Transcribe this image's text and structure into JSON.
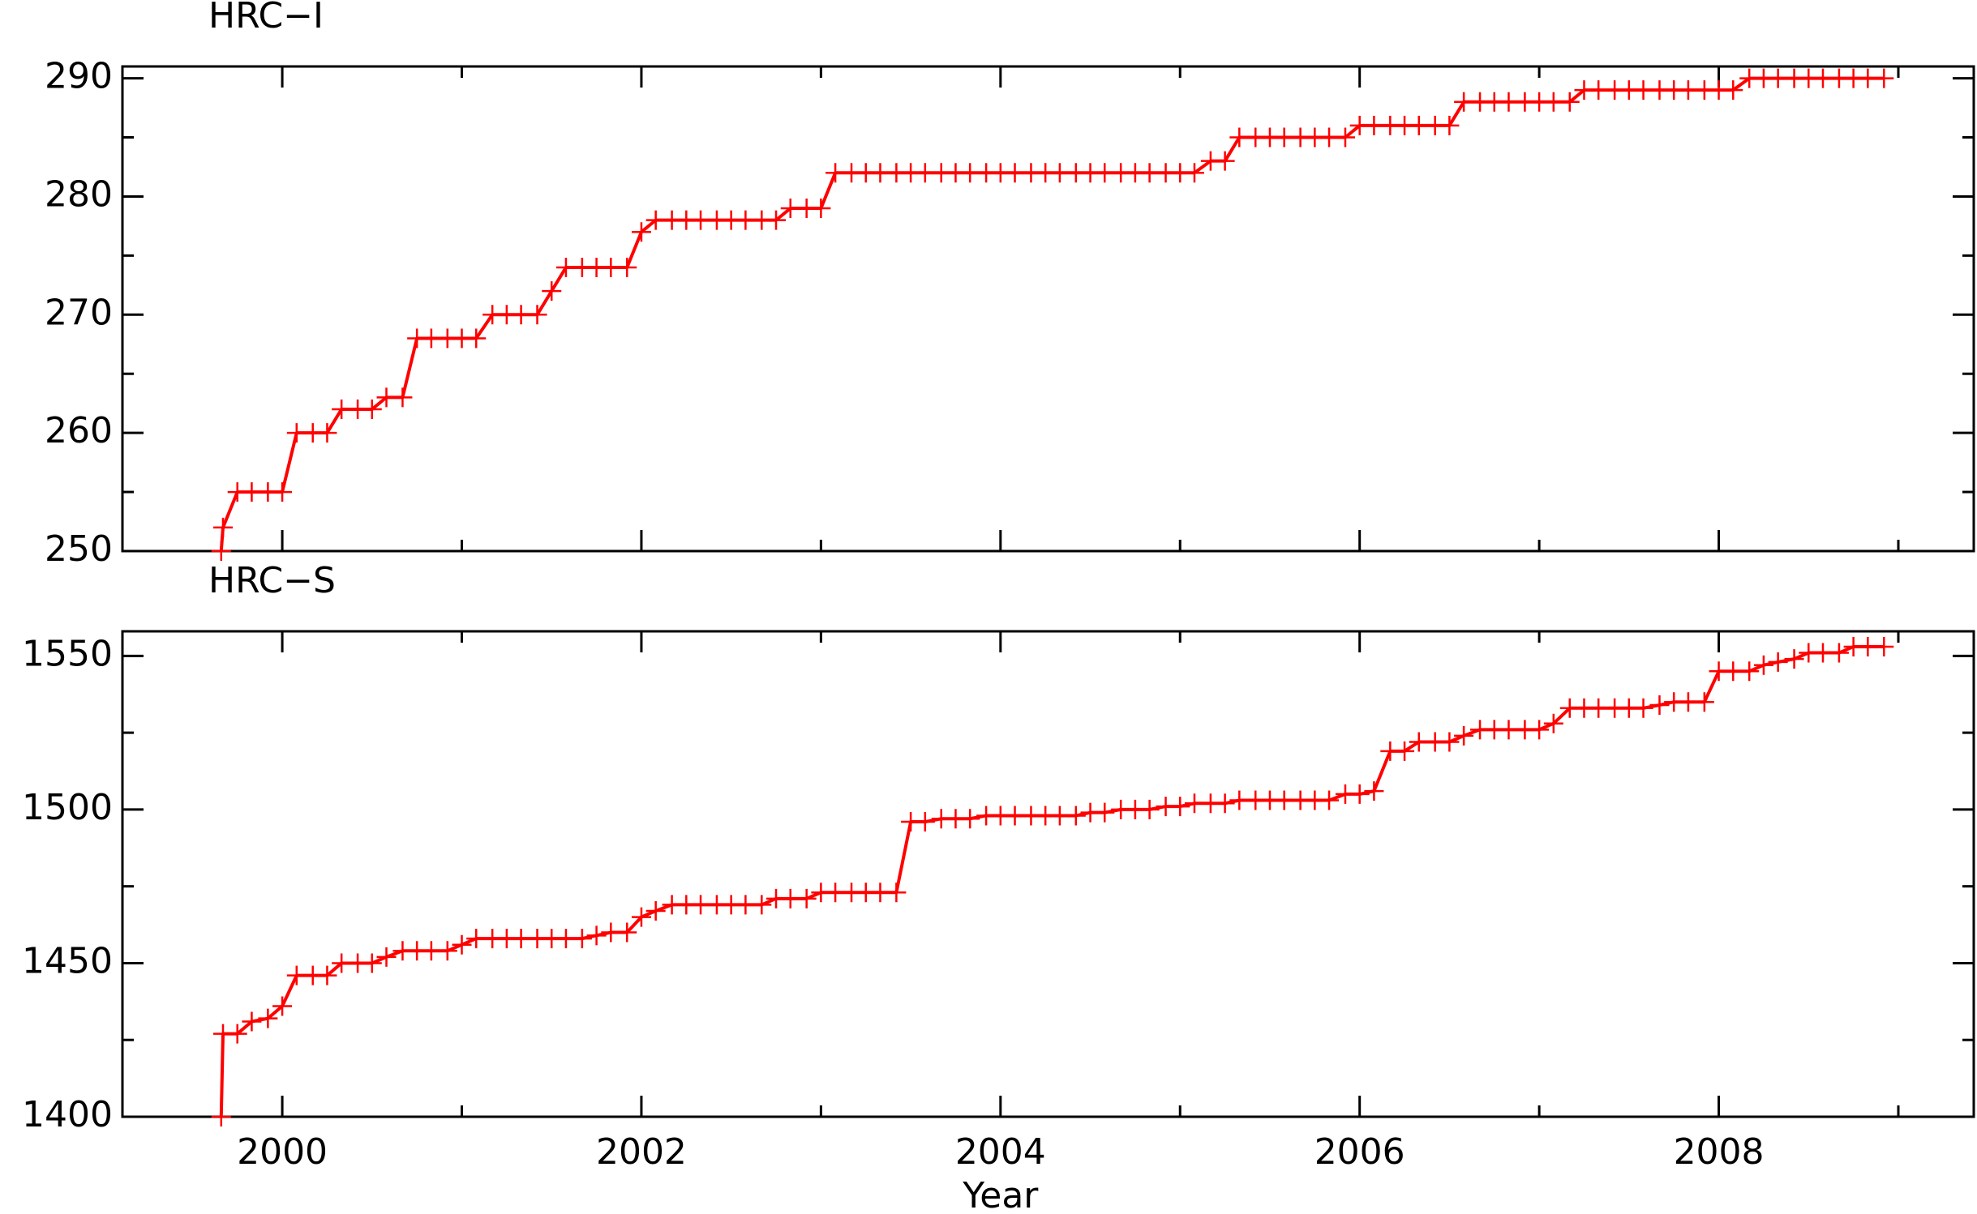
{
  "chart_data": [
    {
      "type": "line",
      "title": "HRC−I",
      "x": [
        1999.66,
        1999.67,
        1999.75,
        1999.83,
        1999.92,
        2000.0,
        2000.08,
        2000.17,
        2000.25,
        2000.33,
        2000.42,
        2000.5,
        2000.58,
        2000.67,
        2000.75,
        2000.83,
        2000.92,
        2001.0,
        2001.08,
        2001.17,
        2001.25,
        2001.33,
        2001.42,
        2001.5,
        2001.58,
        2001.67,
        2001.75,
        2001.83,
        2001.92,
        2002.0,
        2002.08,
        2002.17,
        2002.25,
        2002.33,
        2002.42,
        2002.5,
        2002.58,
        2002.67,
        2002.75,
        2002.83,
        2002.92,
        2003.0,
        2003.08,
        2003.17,
        2003.25,
        2003.33,
        2003.42,
        2003.5,
        2003.58,
        2003.67,
        2003.75,
        2003.83,
        2003.92,
        2004.0,
        2004.08,
        2004.17,
        2004.25,
        2004.33,
        2004.42,
        2004.5,
        2004.58,
        2004.67,
        2004.75,
        2004.83,
        2004.92,
        2005.0,
        2005.08,
        2005.17,
        2005.25,
        2005.33,
        2005.42,
        2005.5,
        2005.58,
        2005.67,
        2005.75,
        2005.83,
        2005.92,
        2006.0,
        2006.08,
        2006.17,
        2006.25,
        2006.33,
        2006.42,
        2006.5,
        2006.58,
        2006.67,
        2006.75,
        2006.83,
        2006.92,
        2007.0,
        2007.08,
        2007.17,
        2007.25,
        2007.33,
        2007.42,
        2007.5,
        2007.58,
        2007.67,
        2007.75,
        2007.83,
        2007.92,
        2008.0,
        2008.08,
        2008.17,
        2008.25,
        2008.33,
        2008.42,
        2008.5,
        2008.58,
        2008.67,
        2008.75,
        2008.83,
        2008.92
      ],
      "series": [
        {
          "color": "#ff0000",
          "values": [
            250,
            252,
            255,
            255,
            255,
            255,
            260,
            260,
            260,
            262,
            262,
            262,
            263,
            263,
            268,
            268,
            268,
            268,
            268,
            270,
            270,
            270,
            270,
            272,
            274,
            274,
            274,
            274,
            274,
            277,
            278,
            278,
            278,
            278,
            278,
            278,
            278,
            278,
            278,
            279,
            279,
            279,
            282,
            282,
            282,
            282,
            282,
            282,
            282,
            282,
            282,
            282,
            282,
            282,
            282,
            282,
            282,
            282,
            282,
            282,
            282,
            282,
            282,
            282,
            282,
            282,
            282,
            283,
            283,
            285,
            285,
            285,
            285,
            285,
            285,
            285,
            285,
            286,
            286,
            286,
            286,
            286,
            286,
            286,
            288,
            288,
            288,
            288,
            288,
            288,
            288,
            288,
            289,
            289,
            289,
            289,
            289,
            289,
            289,
            289,
            289,
            289,
            289,
            290,
            290,
            290,
            290,
            290,
            290,
            290,
            290,
            290,
            290
          ]
        }
      ],
      "xlim": [
        1999.11,
        2009.42
      ],
      "xticks": [
        2000,
        2002,
        2004,
        2006,
        2008
      ],
      "ylim": [
        250,
        291
      ],
      "yticks": [
        250,
        260,
        270,
        280,
        290
      ]
    },
    {
      "type": "line",
      "title": "HRC−S",
      "xlabel": "Year",
      "x": [
        1999.66,
        1999.67,
        1999.75,
        1999.83,
        1999.92,
        2000.0,
        2000.08,
        2000.17,
        2000.25,
        2000.33,
        2000.42,
        2000.5,
        2000.58,
        2000.67,
        2000.75,
        2000.83,
        2000.92,
        2001.0,
        2001.08,
        2001.17,
        2001.25,
        2001.33,
        2001.42,
        2001.5,
        2001.58,
        2001.67,
        2001.75,
        2001.83,
        2001.92,
        2002.0,
        2002.08,
        2002.17,
        2002.25,
        2002.33,
        2002.42,
        2002.5,
        2002.58,
        2002.67,
        2002.75,
        2002.83,
        2002.92,
        2003.0,
        2003.08,
        2003.17,
        2003.25,
        2003.33,
        2003.42,
        2003.5,
        2003.58,
        2003.67,
        2003.75,
        2003.83,
        2003.92,
        2004.0,
        2004.08,
        2004.17,
        2004.25,
        2004.33,
        2004.42,
        2004.5,
        2004.58,
        2004.67,
        2004.75,
        2004.83,
        2004.92,
        2005.0,
        2005.08,
        2005.17,
        2005.25,
        2005.33,
        2005.42,
        2005.5,
        2005.58,
        2005.67,
        2005.75,
        2005.83,
        2005.92,
        2006.0,
        2006.08,
        2006.17,
        2006.25,
        2006.33,
        2006.42,
        2006.5,
        2006.58,
        2006.67,
        2006.75,
        2006.83,
        2006.92,
        2007.0,
        2007.08,
        2007.17,
        2007.25,
        2007.33,
        2007.42,
        2007.5,
        2007.58,
        2007.67,
        2007.75,
        2007.83,
        2007.92,
        2008.0,
        2008.08,
        2008.17,
        2008.25,
        2008.33,
        2008.42,
        2008.5,
        2008.58,
        2008.67,
        2008.75,
        2008.83,
        2008.92
      ],
      "series": [
        {
          "color": "#ff0000",
          "values": [
            1400,
            1427,
            1427,
            1431,
            1432,
            1436,
            1446,
            1446,
            1446,
            1450,
            1450,
            1450,
            1452,
            1454,
            1454,
            1454,
            1454,
            1456,
            1458,
            1458,
            1458,
            1458,
            1458,
            1458,
            1458,
            1458,
            1459,
            1460,
            1460,
            1465,
            1467,
            1469,
            1469,
            1469,
            1469,
            1469,
            1469,
            1469,
            1471,
            1471,
            1471,
            1473,
            1473,
            1473,
            1473,
            1473,
            1473,
            1496,
            1496,
            1497,
            1497,
            1497,
            1498,
            1498,
            1498,
            1498,
            1498,
            1498,
            1498,
            1499,
            1499,
            1500,
            1500,
            1500,
            1501,
            1501,
            1502,
            1502,
            1502,
            1503,
            1503,
            1503,
            1503,
            1503,
            1503,
            1503,
            1505,
            1505,
            1506,
            1519,
            1519,
            1522,
            1522,
            1522,
            1524,
            1526,
            1526,
            1526,
            1526,
            1526,
            1528,
            1533,
            1533,
            1533,
            1533,
            1533,
            1533,
            1534,
            1535,
            1535,
            1535,
            1545,
            1545,
            1545,
            1547,
            1548,
            1549,
            1551,
            1551,
            1551,
            1553,
            1553,
            1553
          ]
        }
      ],
      "xlim": [
        1999.11,
        2009.42
      ],
      "xticks": [
        2000,
        2002,
        2004,
        2006,
        2008
      ],
      "ylim": [
        1400,
        1558
      ],
      "yticks": [
        1400,
        1450,
        1500,
        1550
      ]
    }
  ]
}
